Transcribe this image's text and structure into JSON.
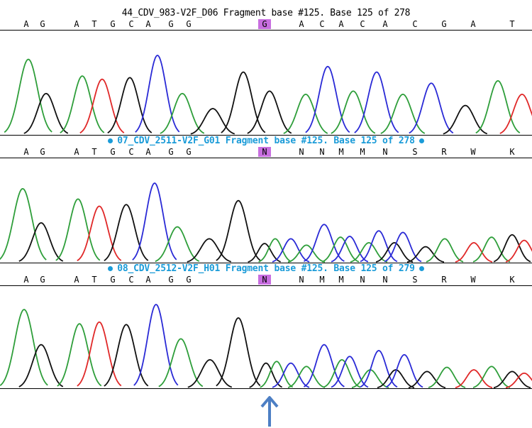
{
  "tracks": [
    {
      "title": "44_CDV_983-V2F_D06 Fragment base #125. Base 125 of 278",
      "highlighted": false,
      "bases": [
        "A",
        "G",
        "A",
        "T",
        "G",
        "C",
        "A",
        "G",
        "G",
        "G",
        "A",
        "C",
        "A",
        "C",
        "A",
        "C",
        "G",
        "A",
        "T"
      ],
      "selected_index": 9
    },
    {
      "title": "07_CDV_2511-V2F_G01 Fragment base #125. Base 125 of 278",
      "highlighted": true,
      "bases": [
        "A",
        "G",
        "A",
        "T",
        "G",
        "C",
        "A",
        "G",
        "G",
        "N",
        "N",
        "N",
        "M",
        "M",
        "N",
        "S",
        "R",
        "W",
        "K"
      ],
      "selected_index": 9
    },
    {
      "title": "08_CDV_2512-V2F_H01 Fragment base #125. Base 125 of 279",
      "highlighted": true,
      "bases": [
        "A",
        "G",
        "A",
        "T",
        "G",
        "C",
        "A",
        "G",
        "G",
        "N",
        "N",
        "M",
        "M",
        "N",
        "N",
        "S",
        "R",
        "W",
        "K"
      ],
      "selected_index": 9
    }
  ],
  "colors": {
    "A": "#2e9e3a",
    "C": "#2a2ad6",
    "G": "#111111",
    "T": "#e02828",
    "selection": "#c86ee0",
    "title_highlight": "#1a9bd8",
    "arrow": "#4d7fc4"
  },
  "peaks": [
    [
      {
        "base": "A",
        "h": 0.95,
        "w": 13
      },
      {
        "base": "G",
        "h": 0.52,
        "w": 12
      },
      {
        "base": "A",
        "h": 0.74,
        "w": 12
      },
      {
        "base": "T",
        "h": 0.7,
        "w": 12
      },
      {
        "base": "G",
        "h": 0.72,
        "w": 12
      },
      {
        "base": "C",
        "h": 1.0,
        "w": 12
      },
      {
        "base": "A",
        "h": 0.52,
        "w": 12
      },
      {
        "base": "G",
        "h": 0.33,
        "w": 12
      },
      {
        "base": "G",
        "h": 0.79,
        "w": 12
      },
      {
        "base": "G",
        "h": 0.55,
        "w": 12
      },
      {
        "base": "A",
        "h": 0.51,
        "w": 12
      },
      {
        "base": "C",
        "h": 0.86,
        "w": 12
      },
      {
        "base": "A",
        "h": 0.55,
        "w": 12
      },
      {
        "base": "C",
        "h": 0.79,
        "w": 12
      },
      {
        "base": "A",
        "h": 0.51,
        "w": 12
      },
      {
        "base": "C",
        "h": 0.65,
        "w": 12
      },
      {
        "base": "G",
        "h": 0.37,
        "w": 12
      },
      {
        "base": "A",
        "h": 0.68,
        "w": 12
      },
      {
        "base": "T",
        "h": 0.51,
        "w": 12
      }
    ],
    [
      {
        "base": "A",
        "h": 0.93,
        "w": 13
      },
      {
        "base": "G",
        "h": 0.5,
        "w": 12
      },
      {
        "base": "A",
        "h": 0.8,
        "w": 12
      },
      {
        "base": "T",
        "h": 0.71,
        "w": 12
      },
      {
        "base": "G",
        "h": 0.73,
        "w": 12
      },
      {
        "base": "C",
        "h": 1.0,
        "w": 12
      },
      {
        "base": "A",
        "h": 0.45,
        "w": 12
      },
      {
        "base": "G",
        "h": 0.3,
        "w": 12
      },
      {
        "base": "G",
        "h": 0.78,
        "w": 12
      },
      {
        "base": "G",
        "h": 0.24,
        "w": 9
      },
      {
        "base": "A",
        "h": 0.3,
        "w": 9
      },
      {
        "base": "C",
        "h": 0.3,
        "w": 10
      },
      {
        "base": "A",
        "h": 0.22,
        "w": 10
      },
      {
        "base": "C",
        "h": 0.48,
        "w": 11
      },
      {
        "base": "A",
        "h": 0.32,
        "w": 10
      },
      {
        "base": "C",
        "h": 0.33,
        "w": 10
      },
      {
        "base": "A",
        "h": 0.25,
        "w": 10
      },
      {
        "base": "C",
        "h": 0.4,
        "w": 10
      },
      {
        "base": "G",
        "h": 0.25,
        "w": 10
      },
      {
        "base": "C",
        "h": 0.38,
        "w": 10
      },
      {
        "base": "G",
        "h": 0.2,
        "w": 10
      },
      {
        "base": "A",
        "h": 0.3,
        "w": 10
      },
      {
        "base": "T",
        "h": 0.25,
        "w": 10
      },
      {
        "base": "A",
        "h": 0.32,
        "w": 10
      },
      {
        "base": "G",
        "h": 0.35,
        "w": 10
      },
      {
        "base": "T",
        "h": 0.28,
        "w": 10
      }
    ],
    [
      {
        "base": "A",
        "h": 0.94,
        "w": 13
      },
      {
        "base": "G",
        "h": 0.52,
        "w": 12
      },
      {
        "base": "A",
        "h": 0.77,
        "w": 12
      },
      {
        "base": "T",
        "h": 0.79,
        "w": 12
      },
      {
        "base": "G",
        "h": 0.76,
        "w": 12
      },
      {
        "base": "C",
        "h": 1.0,
        "w": 12
      },
      {
        "base": "A",
        "h": 0.59,
        "w": 12
      },
      {
        "base": "G",
        "h": 0.34,
        "w": 12
      },
      {
        "base": "G",
        "h": 0.84,
        "w": 12
      },
      {
        "base": "G",
        "h": 0.3,
        "w": 9
      },
      {
        "base": "A",
        "h": 0.32,
        "w": 9
      },
      {
        "base": "C",
        "h": 0.3,
        "w": 10
      },
      {
        "base": "A",
        "h": 0.26,
        "w": 10
      },
      {
        "base": "C",
        "h": 0.52,
        "w": 11
      },
      {
        "base": "A",
        "h": 0.34,
        "w": 10
      },
      {
        "base": "C",
        "h": 0.38,
        "w": 10
      },
      {
        "base": "A",
        "h": 0.22,
        "w": 10
      },
      {
        "base": "C",
        "h": 0.45,
        "w": 10
      },
      {
        "base": "G",
        "h": 0.22,
        "w": 10
      },
      {
        "base": "C",
        "h": 0.4,
        "w": 10
      },
      {
        "base": "G",
        "h": 0.2,
        "w": 10
      },
      {
        "base": "A",
        "h": 0.25,
        "w": 10
      },
      {
        "base": "T",
        "h": 0.22,
        "w": 10
      },
      {
        "base": "A",
        "h": 0.26,
        "w": 10
      },
      {
        "base": "G",
        "h": 0.2,
        "w": 10
      },
      {
        "base": "T",
        "h": 0.18,
        "w": 10
      }
    ]
  ]
}
